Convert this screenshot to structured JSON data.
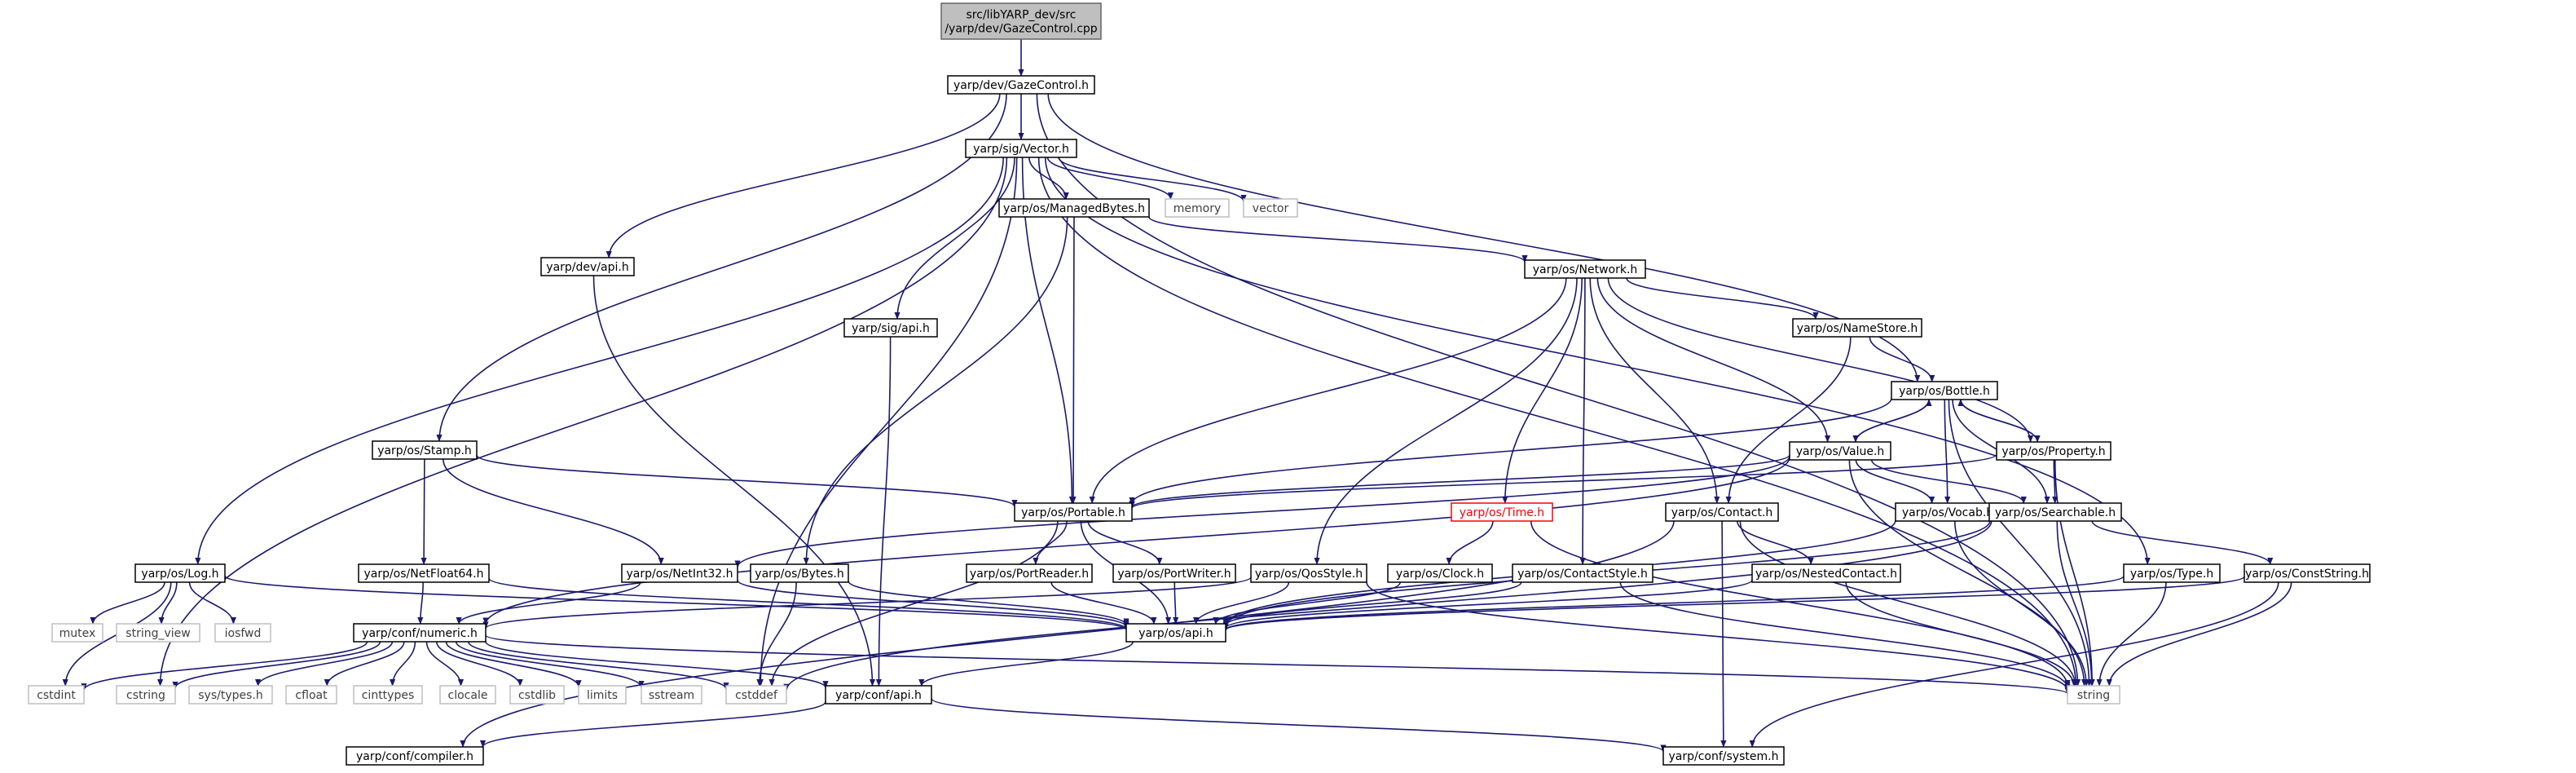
{
  "colors": {
    "edge": "#191970",
    "node_border": "#000000",
    "node_fill": "#ffffff",
    "root_fill": "#bfbfbf",
    "root_border": "#666666",
    "external_border": "#bfbfbf",
    "external_text": "#404040",
    "missing_border": "#ff0000",
    "missing_text": "#ff0000"
  },
  "nodes": [
    {
      "id": "root",
      "lines": [
        "src/libYARP_dev/src",
        "/yarp/dev/GazeControl.cpp"
      ],
      "kind": "root"
    },
    {
      "id": "GazeControl_h",
      "lines": [
        "yarp/dev/GazeControl.h"
      ],
      "kind": "internal"
    },
    {
      "id": "sig_Vector_h",
      "lines": [
        "yarp/sig/Vector.h"
      ],
      "kind": "internal"
    },
    {
      "id": "dev_api_h",
      "lines": [
        "yarp/dev/api.h"
      ],
      "kind": "internal"
    },
    {
      "id": "os_Stamp_h",
      "lines": [
        "yarp/os/Stamp.h"
      ],
      "kind": "internal"
    },
    {
      "id": "os_Log_h",
      "lines": [
        "yarp/os/Log.h"
      ],
      "kind": "internal"
    },
    {
      "id": "os_ManagedBytes_h",
      "lines": [
        "yarp/os/ManagedBytes.h"
      ],
      "kind": "internal"
    },
    {
      "id": "memory",
      "lines": [
        "memory"
      ],
      "kind": "external"
    },
    {
      "id": "vector",
      "lines": [
        "vector"
      ],
      "kind": "external"
    },
    {
      "id": "sig_api_h",
      "lines": [
        "yarp/sig/api.h"
      ],
      "kind": "internal"
    },
    {
      "id": "os_Network_h",
      "lines": [
        "yarp/os/Network.h"
      ],
      "kind": "internal"
    },
    {
      "id": "os_NameStore_h",
      "lines": [
        "yarp/os/NameStore.h"
      ],
      "kind": "internal"
    },
    {
      "id": "os_Bottle_h",
      "lines": [
        "yarp/os/Bottle.h"
      ],
      "kind": "internal"
    },
    {
      "id": "os_Value_h",
      "lines": [
        "yarp/os/Value.h"
      ],
      "kind": "internal"
    },
    {
      "id": "os_Property_h",
      "lines": [
        "yarp/os/Property.h"
      ],
      "kind": "internal"
    },
    {
      "id": "os_Portable_h",
      "lines": [
        "yarp/os/Portable.h"
      ],
      "kind": "internal"
    },
    {
      "id": "os_Time_h",
      "lines": [
        "yarp/os/Time.h"
      ],
      "kind": "missing"
    },
    {
      "id": "os_Contact_h",
      "lines": [
        "yarp/os/Contact.h"
      ],
      "kind": "internal"
    },
    {
      "id": "os_Vocab_h",
      "lines": [
        "yarp/os/Vocab.h"
      ],
      "kind": "internal"
    },
    {
      "id": "os_Searchable_h",
      "lines": [
        "yarp/os/Searchable.h"
      ],
      "kind": "internal"
    },
    {
      "id": "os_NetFloat64_h",
      "lines": [
        "yarp/os/NetFloat64.h"
      ],
      "kind": "internal"
    },
    {
      "id": "os_NetInt32_h",
      "lines": [
        "yarp/os/NetInt32.h"
      ],
      "kind": "internal"
    },
    {
      "id": "os_Bytes_h",
      "lines": [
        "yarp/os/Bytes.h"
      ],
      "kind": "internal"
    },
    {
      "id": "os_PortReader_h",
      "lines": [
        "yarp/os/PortReader.h"
      ],
      "kind": "internal"
    },
    {
      "id": "os_PortWriter_h",
      "lines": [
        "yarp/os/PortWriter.h"
      ],
      "kind": "internal"
    },
    {
      "id": "os_QosStyle_h",
      "lines": [
        "yarp/os/QosStyle.h"
      ],
      "kind": "internal"
    },
    {
      "id": "os_Clock_h",
      "lines": [
        "yarp/os/Clock.h"
      ],
      "kind": "internal"
    },
    {
      "id": "os_ContactStyle_h",
      "lines": [
        "yarp/os/ContactStyle.h"
      ],
      "kind": "internal"
    },
    {
      "id": "os_NestedContact_h",
      "lines": [
        "yarp/os/NestedContact.h"
      ],
      "kind": "internal"
    },
    {
      "id": "os_Type_h",
      "lines": [
        "yarp/os/Type.h"
      ],
      "kind": "internal"
    },
    {
      "id": "os_ConstString_h",
      "lines": [
        "yarp/os/ConstString.h"
      ],
      "kind": "internal"
    },
    {
      "id": "mutex",
      "lines": [
        "mutex"
      ],
      "kind": "external"
    },
    {
      "id": "string_view",
      "lines": [
        "string_view"
      ],
      "kind": "external"
    },
    {
      "id": "iosfwd",
      "lines": [
        "iosfwd"
      ],
      "kind": "external"
    },
    {
      "id": "conf_numeric_h",
      "lines": [
        "yarp/conf/numeric.h"
      ],
      "kind": "internal"
    },
    {
      "id": "os_api_h",
      "lines": [
        "yarp/os/api.h"
      ],
      "kind": "internal"
    },
    {
      "id": "cstdint",
      "lines": [
        "cstdint"
      ],
      "kind": "external"
    },
    {
      "id": "cstring",
      "lines": [
        "cstring"
      ],
      "kind": "external"
    },
    {
      "id": "sys_types_h",
      "lines": [
        "sys/types.h"
      ],
      "kind": "external"
    },
    {
      "id": "cfloat",
      "lines": [
        "cfloat"
      ],
      "kind": "external"
    },
    {
      "id": "cinttypes",
      "lines": [
        "cinttypes"
      ],
      "kind": "external"
    },
    {
      "id": "clocale",
      "lines": [
        "clocale"
      ],
      "kind": "external"
    },
    {
      "id": "cstdlib",
      "lines": [
        "cstdlib"
      ],
      "kind": "external"
    },
    {
      "id": "limits",
      "lines": [
        "limits"
      ],
      "kind": "external"
    },
    {
      "id": "sstream",
      "lines": [
        "sstream"
      ],
      "kind": "external"
    },
    {
      "id": "cstddef",
      "lines": [
        "cstddef"
      ],
      "kind": "external"
    },
    {
      "id": "conf_api_h",
      "lines": [
        "yarp/conf/api.h"
      ],
      "kind": "internal"
    },
    {
      "id": "string",
      "lines": [
        "string"
      ],
      "kind": "external"
    },
    {
      "id": "conf_compiler_h",
      "lines": [
        "yarp/conf/compiler.h"
      ],
      "kind": "internal"
    },
    {
      "id": "conf_system_h",
      "lines": [
        "yarp/conf/system.h"
      ],
      "kind": "internal"
    }
  ],
  "edges": [
    [
      "root",
      "GazeControl_h"
    ],
    [
      "GazeControl_h",
      "sig_Vector_h"
    ],
    [
      "GazeControl_h",
      "dev_api_h"
    ],
    [
      "GazeControl_h",
      "os_Stamp_h"
    ],
    [
      "GazeControl_h",
      "os_Bottle_h"
    ],
    [
      "GazeControl_h",
      "string"
    ],
    [
      "sig_Vector_h",
      "os_Log_h"
    ],
    [
      "sig_Vector_h",
      "os_ManagedBytes_h"
    ],
    [
      "sig_Vector_h",
      "memory"
    ],
    [
      "sig_Vector_h",
      "vector"
    ],
    [
      "sig_Vector_h",
      "sig_api_h"
    ],
    [
      "sig_Vector_h",
      "os_Portable_h"
    ],
    [
      "sig_Vector_h",
      "os_Type_h"
    ],
    [
      "sig_Vector_h",
      "cstring"
    ],
    [
      "sig_Vector_h",
      "cstddef"
    ],
    [
      "sig_Vector_h",
      "string"
    ],
    [
      "dev_api_h",
      "conf_api_h"
    ],
    [
      "os_Stamp_h",
      "os_Portable_h"
    ],
    [
      "os_Stamp_h",
      "os_NetFloat64_h"
    ],
    [
      "os_Stamp_h",
      "os_NetInt32_h"
    ],
    [
      "os_ManagedBytes_h",
      "os_Bytes_h"
    ],
    [
      "os_ManagedBytes_h",
      "os_Portable_h"
    ],
    [
      "os_ManagedBytes_h",
      "os_Network_h"
    ],
    [
      "sig_api_h",
      "conf_api_h"
    ],
    [
      "os_Network_h",
      "os_Portable_h"
    ],
    [
      "os_Network_h",
      "os_QosStyle_h"
    ],
    [
      "os_Network_h",
      "os_Time_h"
    ],
    [
      "os_Network_h",
      "os_ContactStyle_h"
    ],
    [
      "os_Network_h",
      "os_Contact_h"
    ],
    [
      "os_Network_h",
      "os_Value_h"
    ],
    [
      "os_Network_h",
      "os_NameStore_h"
    ],
    [
      "os_Network_h",
      "os_Property_h"
    ],
    [
      "os_NameStore_h",
      "os_Bottle_h"
    ],
    [
      "os_NameStore_h",
      "os_Contact_h"
    ],
    [
      "os_Bottle_h",
      "os_Value_h"
    ],
    [
      "os_Bottle_h",
      "os_Property_h"
    ],
    [
      "os_Bottle_h",
      "os_Portable_h"
    ],
    [
      "os_Bottle_h",
      "os_Vocab_h"
    ],
    [
      "os_Bottle_h",
      "os_Searchable_h"
    ],
    [
      "os_Bottle_h",
      "string"
    ],
    [
      "os_Value_h",
      "os_Bottle_h"
    ],
    [
      "os_Value_h",
      "os_Portable_h"
    ],
    [
      "os_Value_h",
      "os_Vocab_h"
    ],
    [
      "os_Value_h",
      "os_Searchable_h"
    ],
    [
      "os_Value_h",
      "os_NetInt32_h"
    ],
    [
      "os_Value_h",
      "conf_numeric_h"
    ],
    [
      "os_Value_h",
      "string"
    ],
    [
      "os_Property_h",
      "os_Bottle_h"
    ],
    [
      "os_Property_h",
      "os_Portable_h"
    ],
    [
      "os_Property_h",
      "os_Searchable_h"
    ],
    [
      "os_Property_h",
      "string"
    ],
    [
      "os_Portable_h",
      "os_PortReader_h"
    ],
    [
      "os_Portable_h",
      "os_PortWriter_h"
    ],
    [
      "os_Portable_h",
      "os_api_h"
    ],
    [
      "os_Portable_h",
      "cstddef"
    ],
    [
      "os_Time_h",
      "os_Clock_h"
    ],
    [
      "os_Time_h",
      "string"
    ],
    [
      "os_Contact_h",
      "os_NestedContact_h"
    ],
    [
      "os_Contact_h",
      "conf_system_h"
    ],
    [
      "os_Contact_h",
      "string"
    ],
    [
      "os_Contact_h",
      "conf_compiler_h"
    ],
    [
      "os_Vocab_h",
      "os_api_h"
    ],
    [
      "os_Vocab_h",
      "string"
    ],
    [
      "os_Searchable_h",
      "os_ConstString_h"
    ],
    [
      "os_Searchable_h",
      "os_api_h"
    ],
    [
      "os_Searchable_h",
      "string"
    ],
    [
      "os_Searchable_h",
      "cstddef"
    ],
    [
      "os_NetFloat64_h",
      "conf_numeric_h"
    ],
    [
      "os_NetFloat64_h",
      "os_api_h"
    ],
    [
      "os_NetInt32_h",
      "conf_numeric_h"
    ],
    [
      "os_NetInt32_h",
      "os_api_h"
    ],
    [
      "os_Bytes_h",
      "os_api_h"
    ],
    [
      "os_Bytes_h",
      "cstddef"
    ],
    [
      "os_PortReader_h",
      "os_api_h"
    ],
    [
      "os_PortWriter_h",
      "os_api_h"
    ],
    [
      "os_QosStyle_h",
      "os_api_h"
    ],
    [
      "os_QosStyle_h",
      "conf_numeric_h"
    ],
    [
      "os_QosStyle_h",
      "string"
    ],
    [
      "os_Clock_h",
      "os_api_h"
    ],
    [
      "os_ContactStyle_h",
      "os_api_h"
    ],
    [
      "os_ContactStyle_h",
      "string"
    ],
    [
      "os_NestedContact_h",
      "os_api_h"
    ],
    [
      "os_NestedContact_h",
      "string"
    ],
    [
      "os_Type_h",
      "os_api_h"
    ],
    [
      "os_Type_h",
      "string"
    ],
    [
      "os_ConstString_h",
      "os_api_h"
    ],
    [
      "os_ConstString_h",
      "string"
    ],
    [
      "os_ConstString_h",
      "conf_system_h"
    ],
    [
      "os_Log_h",
      "mutex"
    ],
    [
      "os_Log_h",
      "string_view"
    ],
    [
      "os_Log_h",
      "iosfwd"
    ],
    [
      "os_Log_h",
      "os_api_h"
    ],
    [
      "os_Log_h",
      "cstdint"
    ],
    [
      "conf_numeric_h",
      "cstdint"
    ],
    [
      "conf_numeric_h",
      "cstring"
    ],
    [
      "conf_numeric_h",
      "sys_types_h"
    ],
    [
      "conf_numeric_h",
      "cfloat"
    ],
    [
      "conf_numeric_h",
      "cinttypes"
    ],
    [
      "conf_numeric_h",
      "clocale"
    ],
    [
      "conf_numeric_h",
      "cstdlib"
    ],
    [
      "conf_numeric_h",
      "limits"
    ],
    [
      "conf_numeric_h",
      "sstream"
    ],
    [
      "conf_numeric_h",
      "cstddef"
    ],
    [
      "conf_numeric_h",
      "conf_api_h"
    ],
    [
      "conf_numeric_h",
      "string"
    ],
    [
      "os_api_h",
      "conf_api_h"
    ],
    [
      "conf_api_h",
      "conf_compiler_h"
    ],
    [
      "conf_api_h",
      "conf_system_h"
    ]
  ]
}
